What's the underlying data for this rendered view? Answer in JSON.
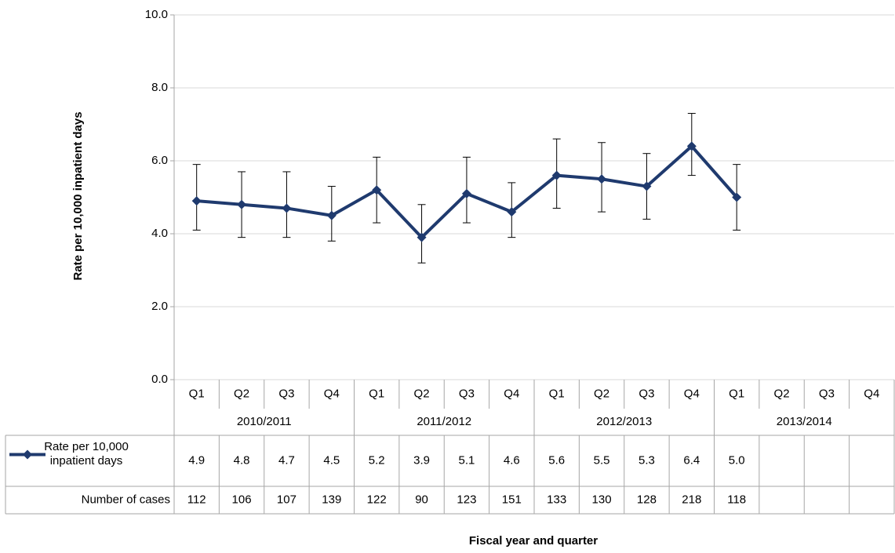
{
  "chart_data": {
    "type": "line",
    "y_label": "Rate per 10,000 inpatient days",
    "x_label": "Fiscal year and quarter",
    "categories": [
      "Q1",
      "Q2",
      "Q3",
      "Q4",
      "Q1",
      "Q2",
      "Q3",
      "Q4",
      "Q1",
      "Q2",
      "Q3",
      "Q4",
      "Q1",
      "Q2",
      "Q3",
      "Q4"
    ],
    "x_groups": [
      "2010/2011",
      "2011/2012",
      "2012/2013",
      "2013/2014"
    ],
    "ylim": [
      0,
      10
    ],
    "yticks": [
      {
        "value": 0,
        "label": "0.0"
      },
      {
        "value": 2,
        "label": "2.0"
      },
      {
        "value": 4,
        "label": "4.0"
      },
      {
        "value": 6,
        "label": "6.0"
      },
      {
        "value": 8,
        "label": "8.0"
      },
      {
        "value": 10,
        "label": "10.0"
      }
    ],
    "grid": true,
    "series": [
      {
        "name": "Rate per 10,000 inpatient days",
        "color": "#1f3a6e",
        "values": [
          4.9,
          4.8,
          4.7,
          4.5,
          5.2,
          3.9,
          5.1,
          4.6,
          5.6,
          5.5,
          5.3,
          6.4,
          5.0,
          null,
          null,
          null
        ],
        "value_labels": [
          "4.9",
          "4.8",
          "4.7",
          "4.5",
          "5.2",
          "3.9",
          "5.1",
          "4.6",
          "5.6",
          "5.5",
          "5.3",
          "6.4",
          "5.0",
          null,
          null,
          null
        ],
        "error_low": [
          4.1,
          3.9,
          3.9,
          3.8,
          4.3,
          3.2,
          4.3,
          3.9,
          4.7,
          4.6,
          4.4,
          5.6,
          4.1,
          null,
          null,
          null
        ],
        "error_high": [
          5.9,
          5.7,
          5.7,
          5.3,
          6.1,
          4.8,
          6.1,
          5.4,
          6.6,
          6.5,
          6.2,
          7.3,
          5.9,
          null,
          null,
          null
        ]
      }
    ],
    "table_rows": [
      {
        "name": "Number of cases",
        "values": [
          112,
          106,
          107,
          139,
          122,
          90,
          123,
          151,
          133,
          130,
          128,
          218,
          118,
          null,
          null,
          null
        ]
      }
    ]
  }
}
